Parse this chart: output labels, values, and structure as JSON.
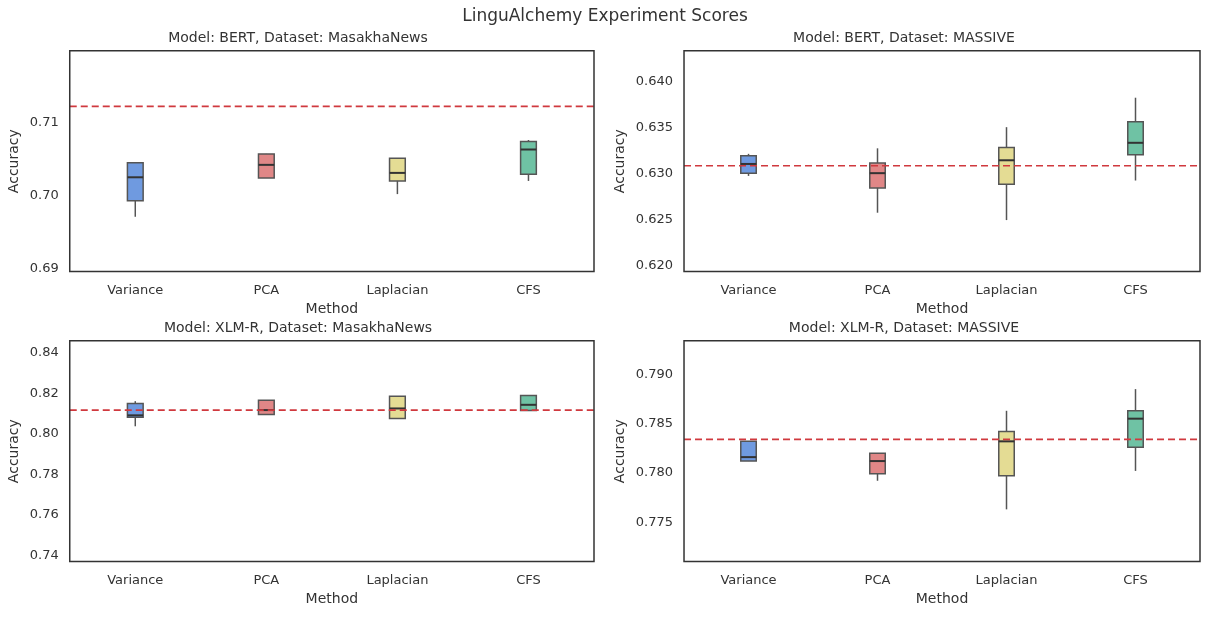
{
  "chart_data": [
    {
      "type": "box",
      "title": "Model: BERT, Dataset: MasakhaNews",
      "xlabel": "Method",
      "ylabel": "Accuracy",
      "annotations": [
        "LinguAlchemy Experiment Scores"
      ],
      "categories": [
        "Variance",
        "PCA",
        "Laplacian",
        "CFS"
      ],
      "colors": [
        "#6f9ae0",
        "#e08787",
        "#e4dc94",
        "#6fc2a4"
      ],
      "boxes": [
        {
          "low": 0.6971,
          "q1": 0.6993,
          "median": 0.7025,
          "q3": 0.7045,
          "high": 0.7045
        },
        {
          "low": 0.7024,
          "q1": 0.7024,
          "median": 0.7042,
          "q3": 0.7057,
          "high": 0.7057
        },
        {
          "low": 0.7002,
          "q1": 0.702,
          "median": 0.7031,
          "q3": 0.7051,
          "high": 0.7051
        },
        {
          "low": 0.702,
          "q1": 0.7029,
          "median": 0.7063,
          "q3": 0.7074,
          "high": 0.7076
        }
      ],
      "ylim": [
        0.6896,
        0.7198
      ],
      "yticks": [
        {
          "value": 0.69,
          "label": "0.69"
        },
        {
          "value": 0.7,
          "label": "0.70"
        },
        {
          "value": 0.71,
          "label": "0.71"
        }
      ],
      "ref_lines": [
        {
          "axis": "y",
          "value": 0.7122,
          "color": "#d0393e",
          "line_style": "dashed"
        }
      ],
      "grid": false,
      "legend": false
    },
    {
      "type": "box",
      "title": "Model: BERT, Dataset: MASSIVE",
      "xlabel": "Method",
      "ylabel": "Accuracy",
      "categories": [
        "Variance",
        "PCA",
        "Laplacian",
        "CFS"
      ],
      "colors": [
        "#6f9ae0",
        "#e08787",
        "#e4dc94",
        "#6fc2a4"
      ],
      "boxes": [
        {
          "low": 0.6298,
          "q1": 0.6301,
          "median": 0.6311,
          "q3": 0.632,
          "high": 0.6322
        },
        {
          "low": 0.6258,
          "q1": 0.6285,
          "median": 0.6301,
          "q3": 0.6312,
          "high": 0.6328
        },
        {
          "low": 0.625,
          "q1": 0.6289,
          "median": 0.6315,
          "q3": 0.6329,
          "high": 0.6351
        },
        {
          "low": 0.6293,
          "q1": 0.6321,
          "median": 0.6334,
          "q3": 0.6357,
          "high": 0.6383
        }
      ],
      "ylim": [
        0.6194,
        0.6434
      ],
      "yticks": [
        {
          "value": 0.62,
          "label": "0.620"
        },
        {
          "value": 0.625,
          "label": "0.625"
        },
        {
          "value": 0.63,
          "label": "0.630"
        },
        {
          "value": 0.635,
          "label": "0.635"
        },
        {
          "value": 0.64,
          "label": "0.640"
        }
      ],
      "ref_lines": [
        {
          "axis": "y",
          "value": 0.6309,
          "color": "#d0393e",
          "line_style": "dashed"
        }
      ],
      "grid": false,
      "legend": false
    },
    {
      "type": "box",
      "title": "Model: XLM-R, Dataset: MasakhaNews",
      "xlabel": "Method",
      "ylabel": "Accuracy",
      "categories": [
        "Variance",
        "PCA",
        "Laplacian",
        "CFS"
      ],
      "colors": [
        "#6f9ae0",
        "#e08787",
        "#e4dc94",
        "#6fc2a4"
      ],
      "boxes": [
        {
          "low": 0.8038,
          "q1": 0.8082,
          "median": 0.8092,
          "q3": 0.815,
          "high": 0.8162
        },
        {
          "low": 0.8096,
          "q1": 0.8096,
          "median": 0.8118,
          "q3": 0.8166,
          "high": 0.8166
        },
        {
          "low": 0.8076,
          "q1": 0.8076,
          "median": 0.8126,
          "q3": 0.8186,
          "high": 0.8186
        },
        {
          "low": 0.8116,
          "q1": 0.8116,
          "median": 0.8144,
          "q3": 0.819,
          "high": 0.819
        }
      ],
      "ylim": [
        0.737,
        0.846
      ],
      "yticks": [
        {
          "value": 0.74,
          "label": "0.74"
        },
        {
          "value": 0.76,
          "label": "0.76"
        },
        {
          "value": 0.78,
          "label": "0.78"
        },
        {
          "value": 0.8,
          "label": "0.80"
        },
        {
          "value": 0.82,
          "label": "0.82"
        },
        {
          "value": 0.84,
          "label": "0.84"
        }
      ],
      "ref_lines": [
        {
          "axis": "y",
          "value": 0.8118,
          "color": "#d0393e",
          "line_style": "dashed"
        }
      ],
      "grid": false,
      "legend": false
    },
    {
      "type": "box",
      "title": "Model: XLM-R, Dataset: MASSIVE",
      "xlabel": "Method",
      "ylabel": "Accuracy",
      "categories": [
        "Variance",
        "PCA",
        "Laplacian",
        "CFS"
      ],
      "colors": [
        "#6f9ae0",
        "#e08787",
        "#e4dc94",
        "#6fc2a4"
      ],
      "boxes": [
        {
          "low": 0.7812,
          "q1": 0.7812,
          "median": 0.7816,
          "q3": 0.7832,
          "high": 0.7832
        },
        {
          "low": 0.7792,
          "q1": 0.7799,
          "median": 0.7812,
          "q3": 0.782,
          "high": 0.782
        },
        {
          "low": 0.7763,
          "q1": 0.7797,
          "median": 0.7832,
          "q3": 0.7842,
          "high": 0.7863
        },
        {
          "low": 0.7802,
          "q1": 0.7826,
          "median": 0.7855,
          "q3": 0.7863,
          "high": 0.7885
        }
      ],
      "ylim": [
        0.771,
        0.7934
      ],
      "yticks": [
        {
          "value": 0.775,
          "label": "0.775"
        },
        {
          "value": 0.78,
          "label": "0.780"
        },
        {
          "value": 0.785,
          "label": "0.785"
        },
        {
          "value": 0.79,
          "label": "0.790"
        }
      ],
      "ref_lines": [
        {
          "axis": "y",
          "value": 0.7834,
          "color": "#d0393e",
          "line_style": "dashed"
        }
      ],
      "grid": false,
      "legend": false
    }
  ]
}
